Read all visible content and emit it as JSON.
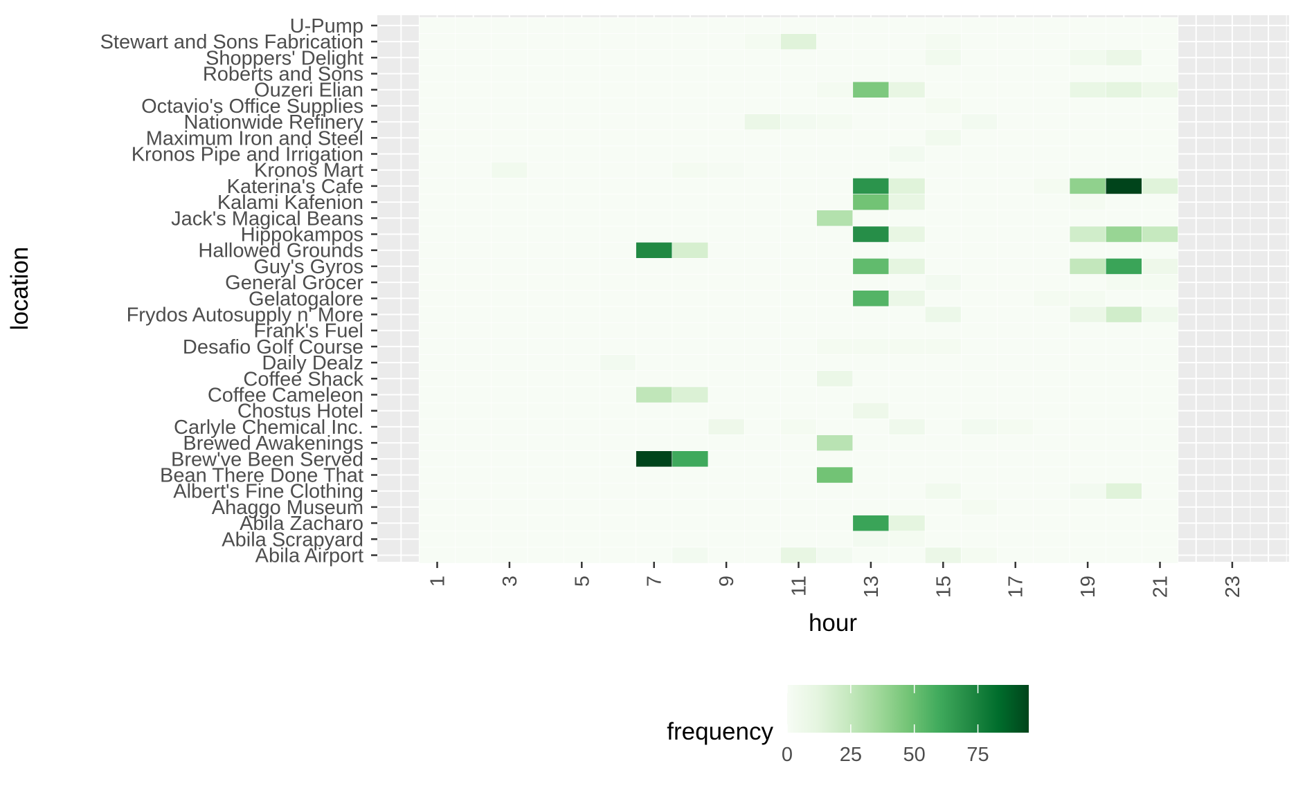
{
  "chart_data": {
    "type": "heatmap",
    "title": "",
    "xlabel": "hour",
    "ylabel": "location",
    "x_ticks": [
      "1",
      "3",
      "5",
      "7",
      "9",
      "11",
      "13",
      "15",
      "17",
      "19",
      "21",
      "23"
    ],
    "x": [
      1,
      2,
      3,
      4,
      5,
      6,
      7,
      8,
      9,
      10,
      11,
      12,
      13,
      14,
      15,
      16,
      17,
      18,
      19,
      20,
      21
    ],
    "y": [
      "Abila Airport",
      "Abila Scrapyard",
      "Abila Zacharo",
      "Ahaggo Museum",
      "Albert's Fine Clothing",
      "Bean There Done That",
      "Brew've Been Served",
      "Brewed Awakenings",
      "Carlyle Chemical Inc.",
      "Chostus Hotel",
      "Coffee Cameleon",
      "Coffee Shack",
      "Daily Dealz",
      "Desafio Golf Course",
      "Frank's Fuel",
      "Frydos Autosupply n' More",
      "Gelatogalore",
      "General Grocer",
      "Guy's Gyros",
      "Hallowed Grounds",
      "Hippokampos",
      "Jack's Magical Beans",
      "Kalami Kafenion",
      "Katerina's Cafe",
      "Kronos Mart",
      "Kronos Pipe and Irrigation",
      "Maximum Iron and Steel",
      "Nationwide Refinery",
      "Octavio's Office Supplies",
      "Ouzeri Elian",
      "Roberts and Sons",
      "Shoppers' Delight",
      "Stewart and Sons Fabrication",
      "U-Pump"
    ],
    "values": [
      [
        0,
        0,
        0,
        0,
        0,
        0,
        0,
        3,
        0,
        0,
        10,
        3,
        0,
        0,
        8,
        2,
        0,
        0,
        0,
        0,
        0
      ],
      [
        0,
        0,
        0,
        0,
        0,
        0,
        0,
        0,
        0,
        0,
        0,
        0,
        3,
        2,
        0,
        0,
        0,
        0,
        0,
        0,
        0
      ],
      [
        0,
        0,
        0,
        0,
        0,
        0,
        0,
        0,
        0,
        0,
        0,
        0,
        62,
        12,
        0,
        0,
        0,
        0,
        0,
        0,
        0
      ],
      [
        0,
        0,
        0,
        0,
        0,
        0,
        0,
        0,
        0,
        0,
        0,
        0,
        0,
        0,
        0,
        2,
        0,
        0,
        0,
        0,
        0
      ],
      [
        0,
        0,
        0,
        0,
        0,
        0,
        0,
        0,
        0,
        0,
        0,
        0,
        0,
        0,
        4,
        0,
        0,
        0,
        3,
        14,
        0
      ],
      [
        0,
        0,
        0,
        0,
        0,
        0,
        0,
        0,
        0,
        0,
        0,
        48,
        0,
        0,
        0,
        0,
        0,
        0,
        0,
        0,
        0
      ],
      [
        0,
        0,
        0,
        0,
        0,
        0,
        95,
        60,
        0,
        0,
        0,
        0,
        0,
        0,
        0,
        0,
        0,
        0,
        0,
        0,
        0
      ],
      [
        0,
        0,
        0,
        0,
        0,
        0,
        0,
        0,
        0,
        0,
        0,
        28,
        0,
        0,
        0,
        0,
        0,
        0,
        0,
        0,
        0
      ],
      [
        0,
        0,
        0,
        0,
        0,
        0,
        0,
        0,
        6,
        0,
        2,
        0,
        0,
        5,
        0,
        3,
        2,
        0,
        0,
        0,
        0
      ],
      [
        0,
        0,
        0,
        0,
        0,
        0,
        0,
        0,
        0,
        0,
        0,
        0,
        6,
        0,
        0,
        0,
        0,
        0,
        0,
        0,
        0
      ],
      [
        0,
        0,
        0,
        0,
        0,
        0,
        26,
        16,
        0,
        0,
        0,
        0,
        0,
        0,
        0,
        0,
        0,
        0,
        0,
        0,
        0
      ],
      [
        0,
        0,
        0,
        0,
        0,
        0,
        0,
        0,
        0,
        0,
        0,
        8,
        0,
        0,
        0,
        0,
        0,
        0,
        0,
        0,
        0
      ],
      [
        0,
        0,
        0,
        0,
        0,
        3,
        0,
        0,
        0,
        0,
        0,
        0,
        0,
        0,
        0,
        0,
        0,
        0,
        0,
        0,
        0
      ],
      [
        0,
        0,
        0,
        0,
        0,
        0,
        0,
        0,
        0,
        0,
        0,
        2,
        2,
        2,
        2,
        0,
        0,
        0,
        0,
        0,
        0
      ],
      [
        0,
        0,
        0,
        0,
        0,
        0,
        0,
        0,
        0,
        0,
        0,
        0,
        0,
        0,
        0,
        0,
        0,
        0,
        0,
        0,
        0
      ],
      [
        0,
        0,
        0,
        0,
        0,
        0,
        0,
        0,
        0,
        0,
        0,
        0,
        0,
        0,
        7,
        0,
        0,
        0,
        8,
        20,
        5
      ],
      [
        0,
        0,
        0,
        0,
        0,
        0,
        0,
        0,
        0,
        0,
        0,
        0,
        55,
        8,
        0,
        0,
        0,
        2,
        2,
        0,
        0
      ],
      [
        0,
        0,
        0,
        0,
        0,
        0,
        0,
        0,
        0,
        0,
        0,
        0,
        0,
        0,
        3,
        0,
        0,
        0,
        0,
        2,
        2
      ],
      [
        0,
        0,
        0,
        0,
        0,
        0,
        0,
        0,
        0,
        0,
        0,
        0,
        52,
        12,
        0,
        0,
        0,
        0,
        25,
        62,
        6
      ],
      [
        0,
        0,
        0,
        0,
        0,
        0,
        72,
        18,
        0,
        0,
        0,
        0,
        0,
        0,
        0,
        0,
        0,
        0,
        0,
        0,
        0
      ],
      [
        0,
        0,
        0,
        0,
        0,
        0,
        0,
        0,
        0,
        0,
        0,
        0,
        70,
        10,
        0,
        0,
        0,
        0,
        20,
        38,
        24
      ],
      [
        0,
        0,
        0,
        0,
        0,
        0,
        0,
        0,
        0,
        0,
        0,
        30,
        0,
        0,
        0,
        0,
        0,
        0,
        0,
        0,
        0
      ],
      [
        0,
        0,
        0,
        0,
        0,
        0,
        0,
        0,
        0,
        0,
        0,
        0,
        48,
        10,
        0,
        0,
        0,
        0,
        2,
        0,
        0
      ],
      [
        0,
        0,
        0,
        0,
        0,
        0,
        0,
        0,
        0,
        0,
        0,
        0,
        68,
        14,
        0,
        0,
        0,
        2,
        40,
        95,
        14
      ],
      [
        0,
        0,
        4,
        0,
        0,
        0,
        0,
        2,
        1,
        0,
        0,
        0,
        0,
        0,
        0,
        0,
        0,
        0,
        0,
        0,
        0
      ],
      [
        0,
        0,
        0,
        0,
        0,
        0,
        0,
        0,
        0,
        0,
        0,
        0,
        0,
        3,
        0,
        0,
        0,
        0,
        0,
        0,
        0
      ],
      [
        0,
        0,
        0,
        0,
        0,
        0,
        0,
        0,
        0,
        0,
        0,
        0,
        0,
        0,
        4,
        0,
        0,
        0,
        0,
        0,
        0
      ],
      [
        0,
        0,
        0,
        0,
        0,
        0,
        0,
        0,
        0,
        8,
        3,
        2,
        0,
        0,
        0,
        3,
        0,
        0,
        0,
        0,
        0
      ],
      [
        0,
        0,
        0,
        0,
        0,
        0,
        0,
        0,
        0,
        0,
        0,
        0,
        0,
        0,
        2,
        0,
        0,
        0,
        0,
        0,
        0
      ],
      [
        0,
        0,
        0,
        0,
        0,
        0,
        0,
        0,
        0,
        0,
        0,
        2,
        45,
        10,
        0,
        0,
        0,
        0,
        9,
        12,
        6
      ],
      [
        0,
        0,
        0,
        0,
        0,
        0,
        0,
        0,
        0,
        0,
        0,
        0,
        0,
        0,
        0,
        0,
        0,
        0,
        0,
        0,
        0
      ],
      [
        0,
        0,
        0,
        0,
        0,
        0,
        0,
        0,
        0,
        0,
        0,
        0,
        0,
        0,
        4,
        0,
        0,
        0,
        4,
        8,
        0
      ],
      [
        0,
        0,
        0,
        0,
        0,
        0,
        0,
        0,
        0,
        2,
        14,
        0,
        0,
        0,
        2,
        0,
        0,
        0,
        0,
        0,
        0
      ],
      [
        0,
        0,
        0,
        0,
        0,
        0,
        0,
        0,
        0,
        0,
        0,
        0,
        0,
        0,
        0,
        0,
        0,
        0,
        0,
        0,
        0
      ]
    ],
    "value_range": [
      0,
      95
    ],
    "color_low": "#f7fcf5",
    "color_high": "#00441b",
    "color_stops": [
      "#f7fcf5",
      "#e5f5e0",
      "#c7e9c0",
      "#a1d99b",
      "#74c476",
      "#41ab5d",
      "#238b45",
      "#006d2c",
      "#00441b"
    ],
    "panel_background": "#ebebeb",
    "grid": true,
    "legend": {
      "title": "frequency",
      "position": "bottom",
      "ticks": [
        "0",
        "25",
        "50",
        "75"
      ]
    }
  }
}
